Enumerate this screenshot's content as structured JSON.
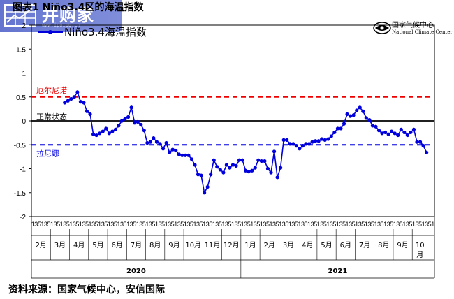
{
  "header": {
    "title": "图表1 Niño3.4区的海温指数",
    "watermark": "并购家",
    "watermark_url": "www.ipoipo.cn"
  },
  "logo": {
    "name_cn": "国家气候中心",
    "name_en": "National Climate Center"
  },
  "footer": {
    "source": "资料来源：国家气候中心，安信国际"
  },
  "chart_data": {
    "type": "line",
    "legend": "Niño3.4海温指数",
    "line_color": "#0000dd",
    "ylim": [
      -2,
      2
    ],
    "yticks": [
      "2",
      "1.5",
      "1",
      "0.5",
      "0",
      "-0.5",
      "-1",
      "-1.5",
      "-2"
    ],
    "reference_lines": [
      {
        "value": 0.5,
        "label": "厄尔尼诺",
        "color": "#ee0000",
        "style": "dashed"
      },
      {
        "value": 0,
        "label": "正常状态",
        "color": "#000000",
        "style": "solid"
      },
      {
        "value": -0.5,
        "label": "拉尼娜",
        "color": "#0000dd",
        "style": "dashed"
      }
    ],
    "pentad_labels": [
      "1",
      "3",
      "5"
    ],
    "months": [
      {
        "year": "2020",
        "label": "2月"
      },
      {
        "year": "2020",
        "label": "3月"
      },
      {
        "year": "2020",
        "label": "4月"
      },
      {
        "year": "2020",
        "label": "5月"
      },
      {
        "year": "2020",
        "label": "6月"
      },
      {
        "year": "2020",
        "label": "7月"
      },
      {
        "year": "2020",
        "label": "8月"
      },
      {
        "year": "2020",
        "label": "9月"
      },
      {
        "year": "2020",
        "label": "10月"
      },
      {
        "year": "2020",
        "label": "11月"
      },
      {
        "year": "2020",
        "label": "12月"
      },
      {
        "year": "2021",
        "label": "1月"
      },
      {
        "year": "2021",
        "label": "2月"
      },
      {
        "year": "2021",
        "label": "3月"
      },
      {
        "year": "2021",
        "label": "4月"
      },
      {
        "year": "2021",
        "label": "5月"
      },
      {
        "year": "2021",
        "label": "6月"
      },
      {
        "year": "2021",
        "label": "7月"
      },
      {
        "year": "2021",
        "label": "8月"
      },
      {
        "year": "2021",
        "label": "9月"
      },
      {
        "year": "2021",
        "label": "10月"
      }
    ],
    "years": [
      "2020",
      "2021"
    ],
    "series": [
      {
        "values": [
          null,
          null,
          null,
          null,
          null,
          null,
          null,
          null,
          null,
          null,
          0.38,
          0.42,
          0.46,
          0.5,
          0.6,
          0.4,
          0.38,
          0.2,
          0.14,
          -0.28,
          -0.3,
          -0.26,
          -0.22,
          -0.16,
          -0.26,
          -0.22,
          -0.18,
          -0.1,
          0.0,
          0.04,
          0.08,
          0.28,
          -0.04,
          -0.02,
          -0.08,
          -0.2,
          -0.46,
          -0.44,
          -0.36,
          -0.44,
          -0.48,
          -0.58,
          -0.46,
          -0.66,
          -0.6,
          -0.62,
          -0.7,
          -0.72,
          -0.72,
          -0.72,
          -0.8,
          -0.92,
          -1.12,
          -1.14,
          -1.5,
          -1.38,
          -1.12,
          -0.82,
          -0.96,
          -1.02,
          -1.08,
          -0.92,
          -0.98,
          -0.92,
          -0.94,
          -0.82,
          -0.82,
          -1.04,
          -1.06,
          -1.04,
          -0.98,
          -0.82,
          -0.84,
          -0.84,
          -1.0,
          -1.08,
          -0.64,
          -1.18,
          -0.98,
          -0.4,
          -0.4,
          -0.48,
          -0.48,
          -0.52,
          -0.58,
          -0.52,
          -0.48,
          -0.48,
          -0.44,
          -0.42,
          -0.42,
          -0.38,
          -0.4,
          -0.38,
          -0.32,
          -0.24,
          -0.16,
          -0.16,
          -0.06,
          0.14,
          0.1,
          0.12,
          0.22,
          0.28,
          0.2,
          0.06,
          0.02,
          -0.1,
          -0.12,
          -0.2,
          -0.26,
          -0.24,
          -0.28,
          -0.22,
          -0.26,
          -0.3,
          -0.18,
          -0.24,
          -0.3,
          -0.24,
          -0.18,
          -0.44,
          -0.44,
          -0.52,
          -0.66
        ]
      }
    ]
  }
}
